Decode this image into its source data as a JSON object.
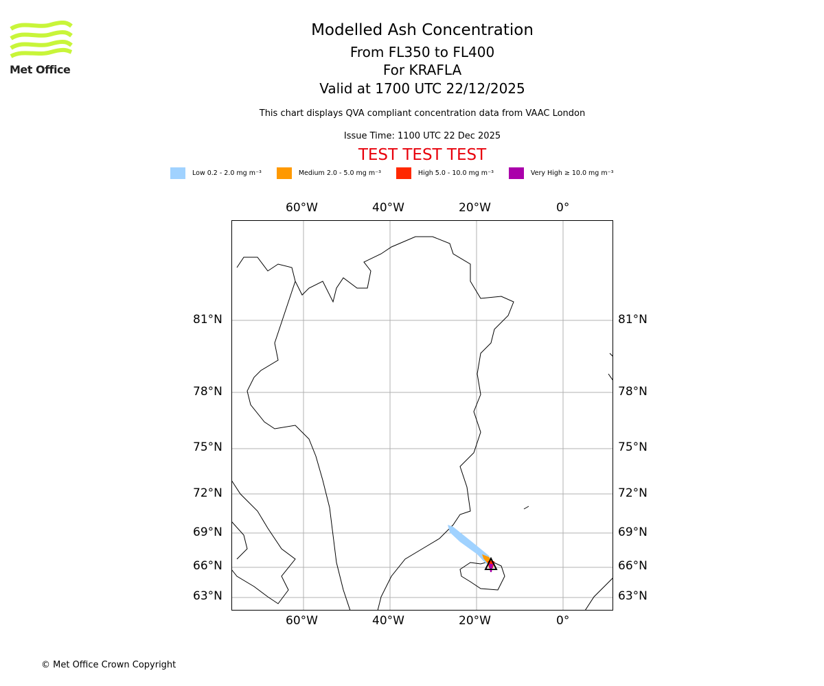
{
  "header": {
    "title": "Modelled Ash Concentration",
    "levels": "From FL350 to FL400",
    "volcano": "For KRAFLA",
    "valid": "Valid at 1700 UTC 22/12/2025",
    "subtitle": "This chart displays QVA compliant concentration data from VAAC London",
    "issue_time": "Issue Time: 1100 UTC 22 Dec 2025",
    "test_banner": "TEST TEST TEST"
  },
  "logo": {
    "text": "Met Office"
  },
  "legend": [
    {
      "label": "Low 0.2 - 2.0 mg m⁻³",
      "color": "#a0d2ff"
    },
    {
      "label": "Medium 2.0 - 5.0 mg m⁻³",
      "color": "#ff9900"
    },
    {
      "label": "High 5.0 - 10.0 mg m⁻³",
      "color": "#ff2800"
    },
    {
      "label": "Very High ≥ 10.0 mg m⁻³",
      "color": "#aa00aa"
    }
  ],
  "map": {
    "lon_ticks": [
      "60°W",
      "40°W",
      "20°W",
      "0°"
    ],
    "lat_ticks": [
      "81°N",
      "78°N",
      "75°N",
      "72°N",
      "69°N",
      "66°N",
      "63°N"
    ]
  },
  "footer": {
    "copyright": "© Met Office Crown Copyright"
  }
}
